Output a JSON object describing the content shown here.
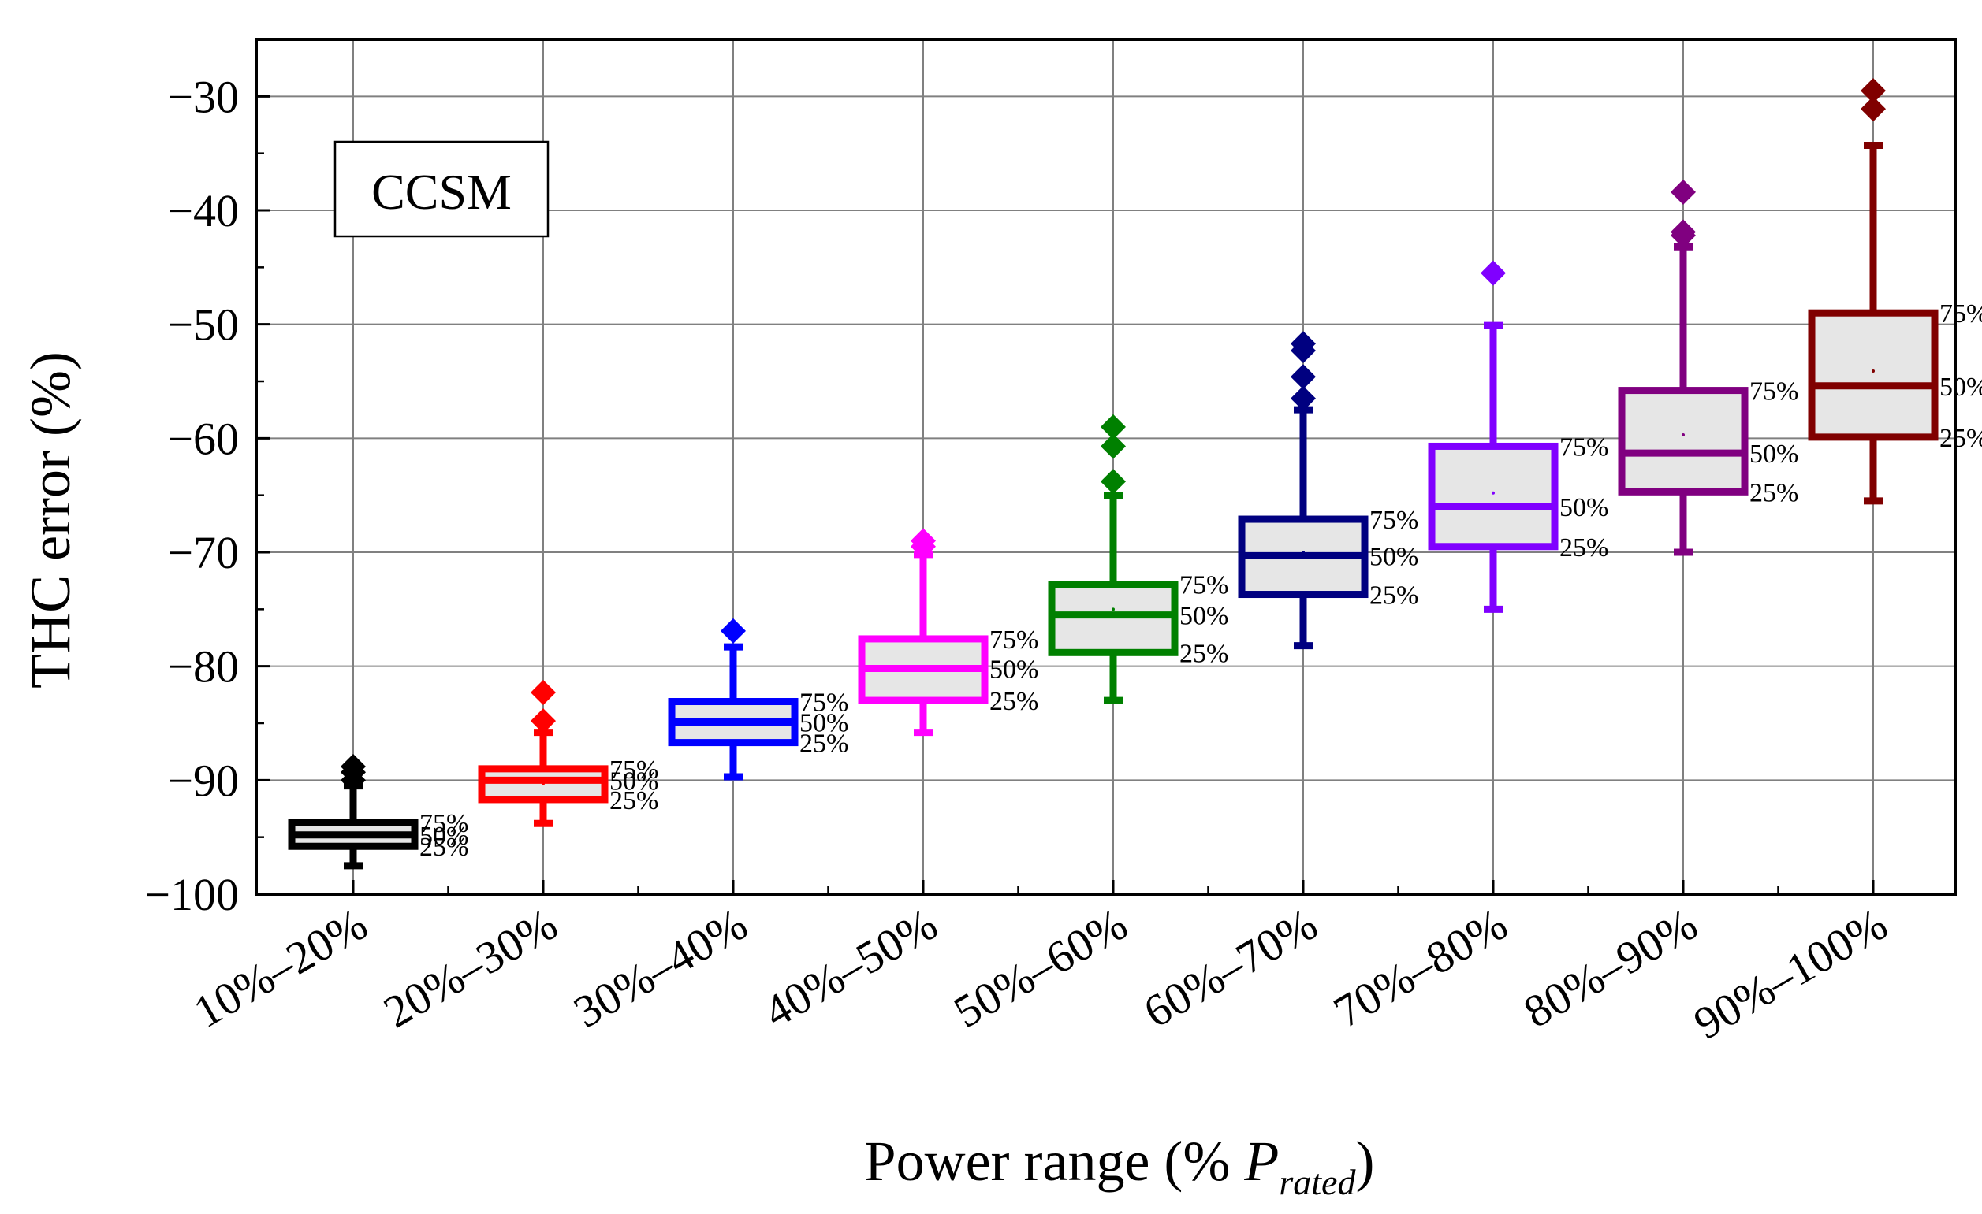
{
  "chart_data": {
    "type": "box",
    "title": "",
    "annotation": "CCSM",
    "xlabel_main": "Power range (% ",
    "xlabel_symbol": "P",
    "xlabel_subscript": "rated",
    "xlabel_close": ")",
    "ylabel": "THC error (%)",
    "ylim": [
      -100,
      -25
    ],
    "yticks": [
      -100,
      -90,
      -80,
      -70,
      -60,
      -50,
      -40,
      -30
    ],
    "ytick_labels": [
      "−100",
      "−90",
      "−80",
      "−70",
      "−60",
      "−50",
      "−40",
      "−30"
    ],
    "grid": true,
    "quantile_labels": [
      "75%",
      "50%",
      "25%"
    ],
    "series": [
      {
        "category": "10%–20%",
        "color": "#000000",
        "whisker_low": -97.5,
        "q1": -95.8,
        "median": -94.8,
        "q3": -93.7,
        "whisker_high": -90.5,
        "mean": -94.8,
        "outliers": [
          -88.8,
          -89.3,
          -90.0
        ]
      },
      {
        "category": "20%–30%",
        "color": "#ff0000",
        "whisker_low": -93.8,
        "q1": -91.7,
        "median": -90.0,
        "q3": -89.0,
        "whisker_high": -85.8,
        "mean": -90.3,
        "outliers": [
          -82.3,
          -84.8
        ]
      },
      {
        "category": "30%–40%",
        "color": "#0000ff",
        "whisker_low": -89.7,
        "q1": -86.7,
        "median": -84.9,
        "q3": -83.1,
        "whisker_high": -78.3,
        "mean": -85.0,
        "outliers": [
          -76.9
        ]
      },
      {
        "category": "40%–50%",
        "color": "#ff00ff",
        "whisker_low": -85.8,
        "q1": -83.0,
        "median": -80.2,
        "q3": -77.6,
        "whisker_high": -70.2,
        "mean": -80.2,
        "outliers": [
          -69.0,
          -69.5
        ]
      },
      {
        "category": "50%–60%",
        "color": "#008000",
        "whisker_low": -83.0,
        "q1": -78.8,
        "median": -75.5,
        "q3": -72.8,
        "whisker_high": -65.0,
        "mean": -75.0,
        "outliers": [
          -59.0,
          -60.7,
          -63.8
        ]
      },
      {
        "category": "60%–70%",
        "color": "#000080",
        "whisker_low": -78.2,
        "q1": -73.7,
        "median": -70.3,
        "q3": -67.1,
        "whisker_high": -57.5,
        "mean": -70.0,
        "outliers": [
          -51.7,
          -52.3,
          -54.6,
          -56.5
        ]
      },
      {
        "category": "70%–80%",
        "color": "#8000ff",
        "whisker_low": -75.0,
        "q1": -69.5,
        "median": -66.0,
        "q3": -60.7,
        "whisker_high": -50.1,
        "mean": -64.8,
        "outliers": [
          -45.5
        ]
      },
      {
        "category": "80%–90%",
        "color": "#800080",
        "whisker_low": -70.0,
        "q1": -64.7,
        "median": -61.3,
        "q3": -55.8,
        "whisker_high": -43.2,
        "mean": -59.7,
        "outliers": [
          -38.4,
          -41.9,
          -42.2
        ]
      },
      {
        "category": "90%–100%",
        "color": "#800000",
        "whisker_low": -65.5,
        "q1": -59.9,
        "median": -55.4,
        "q3": -49.0,
        "whisker_high": -34.3,
        "mean": -54.1,
        "outliers": [
          -29.5,
          -31.1
        ]
      }
    ]
  }
}
